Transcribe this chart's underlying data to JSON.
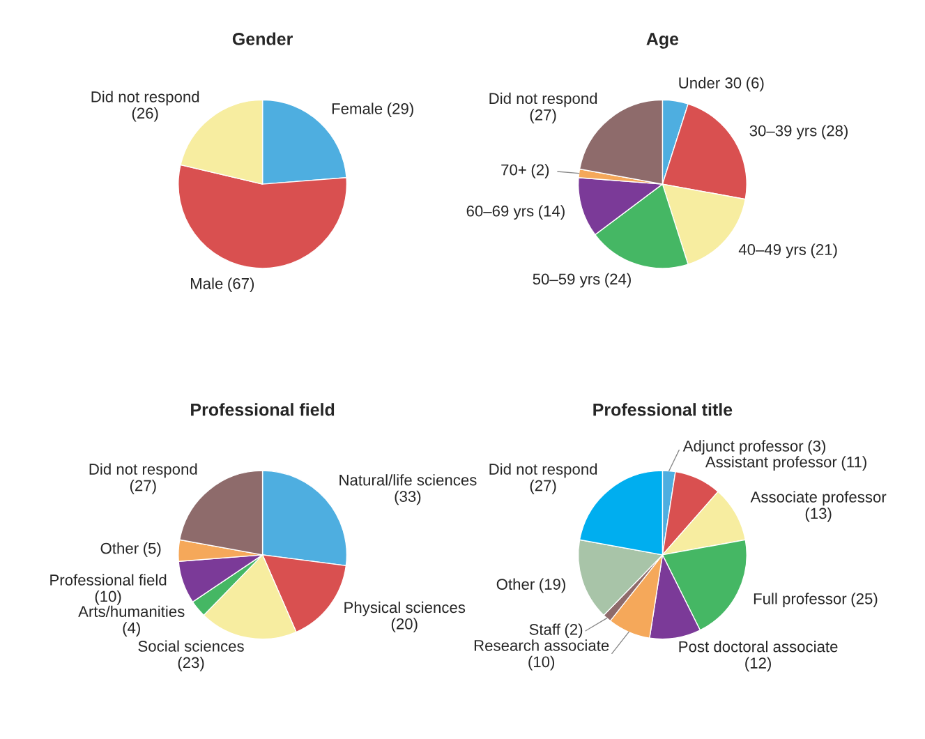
{
  "chart_data": [
    {
      "type": "pie",
      "title": "Gender",
      "categories": [
        "Female",
        "Male",
        "Did not respond"
      ],
      "values": [
        29,
        67,
        26
      ],
      "colors": [
        "#4eaee0",
        "#d95050",
        "#f7eda0"
      ],
      "value_labels": [
        "(29)",
        "(67)",
        "(26)"
      ]
    },
    {
      "type": "pie",
      "title": "Age",
      "categories": [
        "Under 30",
        "30–39 yrs",
        "40–49 yrs",
        "50–59 yrs",
        "60–69 yrs",
        "70+",
        "Did not respond"
      ],
      "values": [
        6,
        28,
        21,
        24,
        14,
        2,
        27
      ],
      "colors": [
        "#4eaee0",
        "#d95050",
        "#f7eda0",
        "#45b764",
        "#7b3a98",
        "#f5a85a",
        "#8e6b6b"
      ],
      "value_labels": [
        "(6)",
        "(28)",
        "(21)",
        "(24)",
        "(14)",
        "(2)",
        "(27)"
      ]
    },
    {
      "type": "pie",
      "title": "Professional field",
      "categories": [
        "Natural/life sciences",
        "Physical sciences",
        "Social sciences",
        "Arts/humanities",
        "Professional field",
        "Other",
        "Did not respond"
      ],
      "values": [
        33,
        20,
        23,
        4,
        10,
        5,
        27
      ],
      "colors": [
        "#4eaee0",
        "#d95050",
        "#f7eda0",
        "#45b764",
        "#7b3a98",
        "#f5a85a",
        "#8e6b6b"
      ],
      "value_labels": [
        "(33)",
        "(20)",
        "(23)",
        "(4)",
        "(10)",
        "(5)",
        "(27)"
      ]
    },
    {
      "type": "pie",
      "title": "Professional title",
      "categories": [
        "Adjunct professor",
        "Assistant professor",
        "Associate professor",
        "Full professor",
        "Post doctoral associate",
        "Research associate",
        "Staff",
        "Other",
        "Did not respond"
      ],
      "values": [
        3,
        11,
        13,
        25,
        12,
        10,
        2,
        19,
        27
      ],
      "colors": [
        "#4eaee0",
        "#d95050",
        "#f7eda0",
        "#45b764",
        "#7b3a98",
        "#f5a85a",
        "#8e6b6b",
        "#a8c4a8",
        "#00aeef"
      ],
      "value_labels": [
        "(3)",
        "(11)",
        "(13)",
        "(25)",
        "(12)",
        "(10)",
        "(2)",
        "(19)",
        "(27)"
      ]
    }
  ]
}
